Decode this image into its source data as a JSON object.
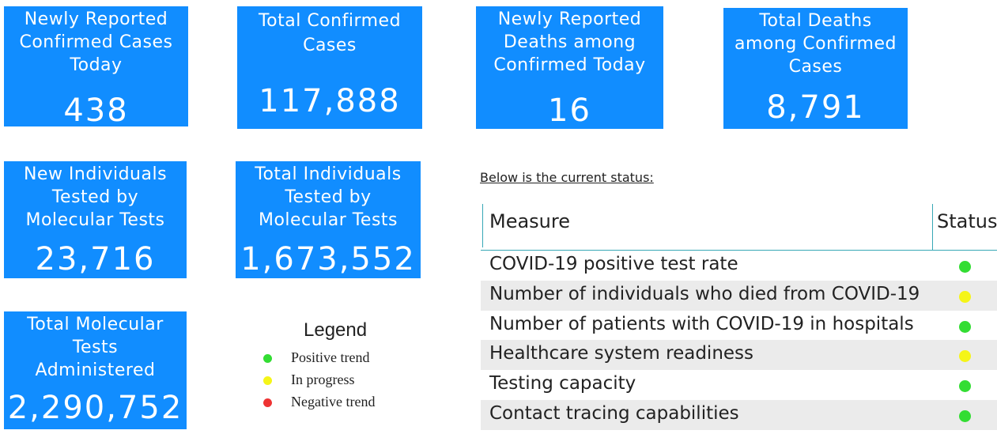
{
  "tiles": [
    {
      "label": "Newly Reported\nConfirmed Cases\nToday",
      "value": "438"
    },
    {
      "label": "Total Confirmed\nCases",
      "value": "117,888"
    },
    {
      "label": "Newly Reported\nDeaths among\nConfirmed Today",
      "value": "16"
    },
    {
      "label": "Total Deaths\namong Confirmed\nCases",
      "value": "8,791"
    },
    {
      "label": "New Individuals\nTested by\nMolecular Tests",
      "value": "23,716"
    },
    {
      "label": "Total Individuals\nTested by\nMolecular Tests",
      "value": "1,673,552"
    },
    {
      "label": "Total Molecular\nTests\nAdministered",
      "value": "2,290,752"
    }
  ],
  "legend": {
    "title": "Legend",
    "items": [
      {
        "label": "Positive trend",
        "color": "#33dd33"
      },
      {
        "label": "In progress",
        "color": "#f5f518"
      },
      {
        "label": "Negative trend",
        "color": "#ee3333"
      }
    ]
  },
  "status": {
    "heading": "Below is the current status:",
    "columns": [
      "Measure",
      "Status"
    ],
    "rows": [
      {
        "measure": "COVID-19 positive test rate",
        "status": "Positive trend",
        "color": "#33dd33"
      },
      {
        "measure": "Number of individuals who died from COVID-19",
        "status": "In progress",
        "color": "#f5f518"
      },
      {
        "measure": "Number of patients with COVID-19 in hospitals",
        "status": "Positive trend",
        "color": "#33dd33"
      },
      {
        "measure": "Healthcare system readiness",
        "status": "In progress",
        "color": "#f5f518"
      },
      {
        "measure": "Testing capacity",
        "status": "Positive trend",
        "color": "#33dd33"
      },
      {
        "measure": "Contact tracing capabilities",
        "status": "Positive trend",
        "color": "#33dd33"
      }
    ]
  },
  "colors": {
    "tile": "#118dff",
    "table_line": "#37a8b6",
    "alt_row": "#ebebeb"
  }
}
